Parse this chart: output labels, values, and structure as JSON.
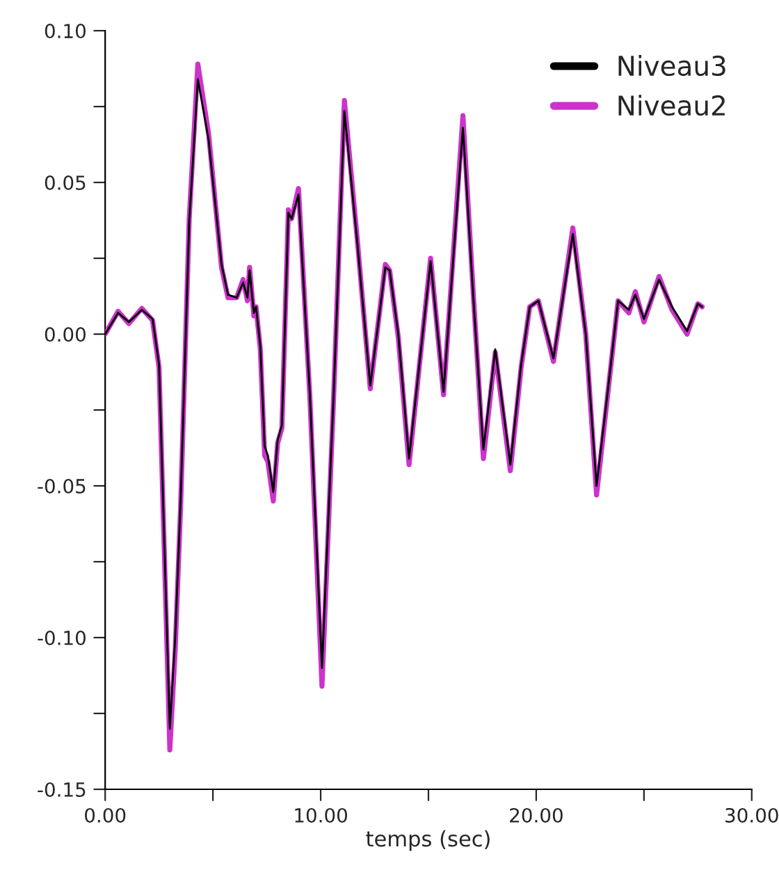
{
  "chart_data": {
    "type": "line",
    "xlabel": "temps (sec)",
    "xlim": [
      0,
      30
    ],
    "ylim": [
      -0.15,
      0.1
    ],
    "xticks": [
      {
        "value": 0,
        "label": "0.00"
      },
      {
        "value": 5,
        "label": null
      },
      {
        "value": 10,
        "label": "10.00"
      },
      {
        "value": 15,
        "label": null
      },
      {
        "value": 20,
        "label": "20.00"
      },
      {
        "value": 25,
        "label": null
      },
      {
        "value": 30,
        "label": "30.00"
      }
    ],
    "yticks": [
      {
        "value": -0.15,
        "label": "-0.15"
      },
      {
        "value": -0.125,
        "label": null
      },
      {
        "value": -0.1,
        "label": "-0.10"
      },
      {
        "value": -0.075,
        "label": null
      },
      {
        "value": -0.05,
        "label": "-0.05"
      },
      {
        "value": -0.025,
        "label": null
      },
      {
        "value": 0,
        "label": "0.00"
      },
      {
        "value": 0.025,
        "label": null
      },
      {
        "value": 0.05,
        "label": "0.05"
      },
      {
        "value": 0.075,
        "label": null
      },
      {
        "value": 0.1,
        "label": "0.10"
      }
    ],
    "grid": false,
    "legend": "top right",
    "marker": "none",
    "line_style": "solid",
    "x": [
      0,
      0.6,
      1.1,
      1.7,
      2.2,
      2.5,
      2.75,
      3.0,
      3.25,
      3.5,
      3.9,
      4.3,
      4.8,
      5.4,
      5.7,
      6.1,
      6.4,
      6.6,
      6.7,
      6.9,
      7.0,
      7.2,
      7.4,
      7.55,
      7.8,
      8.0,
      8.2,
      8.5,
      8.65,
      8.97,
      9.5,
      10.06,
      10.6,
      11.1,
      11.7,
      12.3,
      13.0,
      13.2,
      13.6,
      14.1,
      15.1,
      15.7,
      16.1,
      16.6,
      17.1,
      17.55,
      18.1,
      18.8,
      19.3,
      19.7,
      20.1,
      20.8,
      21.7,
      22.3,
      22.8,
      23.3,
      23.8,
      24.3,
      24.6,
      25.0,
      25.7,
      26.3,
      27.0,
      27.5,
      27.7
    ],
    "series": [
      {
        "name": "Niveau3",
        "color": "#000000",
        "values": [
          0,
          0.007,
          0.004,
          0.008,
          0.005,
          -0.01,
          -0.07,
          -0.13,
          -0.1,
          -0.055,
          0.037,
          0.084,
          0.064,
          0.023,
          0.013,
          0.012,
          0.017,
          0.012,
          0.021,
          0.007,
          0.009,
          -0.004,
          -0.037,
          -0.04,
          -0.052,
          -0.035,
          -0.03,
          0.04,
          0.038,
          0.046,
          -0.02,
          -0.11,
          -0.02,
          0.0735,
          0.03,
          -0.017,
          0.022,
          0.021,
          0.0,
          -0.041,
          0.024,
          -0.019,
          0.02,
          0.068,
          0.01,
          -0.038,
          -0.005,
          -0.043,
          -0.01,
          0.009,
          0.011,
          -0.008,
          0.033,
          0.0,
          -0.05,
          -0.02,
          0.011,
          0.008,
          0.013,
          0.005,
          0.018,
          0.009,
          0.001,
          0.01,
          0.009
        ]
      },
      {
        "name": "Niveau2",
        "color": "#cc33cc",
        "values": [
          0,
          0.0075,
          0.0035,
          0.0085,
          0.0045,
          -0.011,
          -0.073,
          -0.137,
          -0.104,
          -0.057,
          0.038,
          0.089,
          0.066,
          0.022,
          0.012,
          0.012,
          0.018,
          0.011,
          0.022,
          0.006,
          0.009,
          -0.005,
          -0.04,
          -0.042,
          -0.055,
          -0.036,
          -0.031,
          0.041,
          0.038,
          0.048,
          -0.021,
          -0.116,
          -0.021,
          0.077,
          0.031,
          -0.018,
          0.023,
          0.021,
          -0.001,
          -0.043,
          0.025,
          -0.02,
          0.021,
          0.072,
          0.011,
          -0.041,
          -0.006,
          -0.045,
          -0.011,
          0.009,
          0.011,
          -0.009,
          0.035,
          0.0,
          -0.053,
          -0.021,
          0.011,
          0.007,
          0.014,
          0.004,
          0.019,
          0.008,
          0.0,
          0.01,
          0.009
        ]
      }
    ]
  }
}
